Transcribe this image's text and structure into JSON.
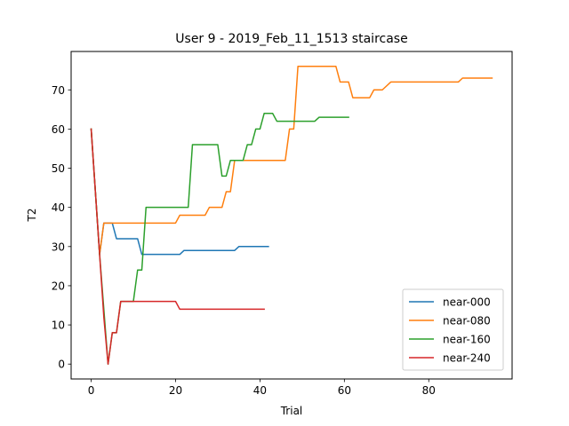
{
  "chart_data": {
    "type": "line",
    "title": "User 9 - 2019_Feb_11_1513 staircase",
    "xlabel": "Trial",
    "ylabel": "T2",
    "xlim": [
      -4.75,
      99.75
    ],
    "ylim": [
      -3.8,
      79.8
    ],
    "xticks": [
      0,
      20,
      40,
      60,
      80
    ],
    "yticks": [
      0,
      10,
      20,
      30,
      40,
      50,
      60,
      70
    ],
    "grid": false,
    "legend_position": "lower-right",
    "series": [
      {
        "name": "near-000",
        "color": "#1f77b4",
        "points": [
          [
            0,
            60
          ],
          [
            2,
            28
          ],
          [
            3,
            36
          ],
          [
            5,
            36
          ],
          [
            6,
            32
          ],
          [
            11,
            32
          ],
          [
            12,
            28
          ],
          [
            21,
            28
          ],
          [
            22,
            29
          ],
          [
            34,
            29
          ],
          [
            35,
            30
          ],
          [
            42,
            30
          ]
        ]
      },
      {
        "name": "near-080",
        "color": "#ff7f0e",
        "points": [
          [
            0,
            60
          ],
          [
            2,
            28
          ],
          [
            3,
            36
          ],
          [
            20,
            36
          ],
          [
            21,
            38
          ],
          [
            27,
            38
          ],
          [
            28,
            40
          ],
          [
            31,
            40
          ],
          [
            32,
            44
          ],
          [
            33,
            44
          ],
          [
            34,
            52
          ],
          [
            46,
            52
          ],
          [
            47,
            60
          ],
          [
            48,
            60
          ],
          [
            49,
            76
          ],
          [
            58,
            76
          ],
          [
            59,
            72
          ],
          [
            61,
            72
          ],
          [
            62,
            68
          ],
          [
            66,
            68
          ],
          [
            67,
            70
          ],
          [
            69,
            70
          ],
          [
            71,
            72
          ],
          [
            87,
            72
          ],
          [
            88,
            73
          ],
          [
            95,
            73
          ]
        ]
      },
      {
        "name": "near-160",
        "color": "#2ca02c",
        "points": [
          [
            0,
            60
          ],
          [
            2,
            28
          ],
          [
            4,
            0
          ],
          [
            5,
            8
          ],
          [
            6,
            8
          ],
          [
            7,
            16
          ],
          [
            10,
            16
          ],
          [
            11,
            24
          ],
          [
            12,
            24
          ],
          [
            13,
            40
          ],
          [
            23,
            40
          ],
          [
            24,
            56
          ],
          [
            30,
            56
          ],
          [
            31,
            48
          ],
          [
            32,
            48
          ],
          [
            33,
            52
          ],
          [
            36,
            52
          ],
          [
            37,
            56
          ],
          [
            38,
            56
          ],
          [
            39,
            60
          ],
          [
            40,
            60
          ],
          [
            41,
            64
          ],
          [
            43,
            64
          ],
          [
            44,
            62
          ],
          [
            53,
            62
          ],
          [
            54,
            63
          ],
          [
            61,
            63
          ]
        ]
      },
      {
        "name": "near-240",
        "color": "#d62728",
        "points": [
          [
            0,
            60
          ],
          [
            3,
            12
          ],
          [
            4,
            0
          ],
          [
            5,
            8
          ],
          [
            6,
            8
          ],
          [
            7,
            16
          ],
          [
            20,
            16
          ],
          [
            21,
            14
          ],
          [
            41,
            14
          ]
        ]
      }
    ]
  }
}
